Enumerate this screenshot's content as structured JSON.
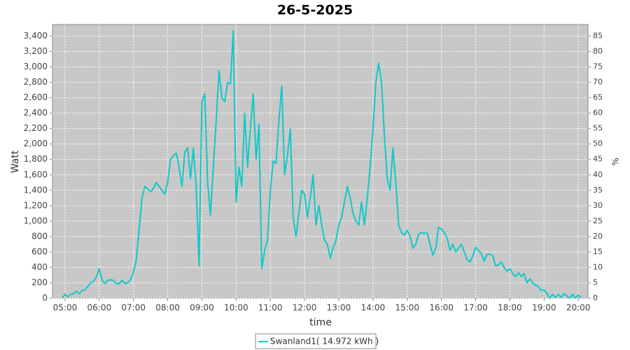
{
  "chart_data": {
    "type": "line",
    "title": "26-5-2025",
    "xlabel": "time",
    "ylabel": "Watt",
    "y2label": "%",
    "x": [
      "04:55",
      "05:00",
      "05:05",
      "05:10",
      "05:15",
      "05:20",
      "05:25",
      "05:30",
      "05:35",
      "05:40",
      "05:45",
      "05:50",
      "05:55",
      "06:00",
      "06:05",
      "06:10",
      "06:15",
      "06:20",
      "06:25",
      "06:30",
      "06:35",
      "06:40",
      "06:45",
      "06:50",
      "06:55",
      "07:00",
      "07:05",
      "07:10",
      "07:15",
      "07:20",
      "07:25",
      "07:30",
      "07:35",
      "07:40",
      "07:45",
      "07:50",
      "07:55",
      "08:00",
      "08:05",
      "08:10",
      "08:15",
      "08:20",
      "08:25",
      "08:30",
      "08:35",
      "08:40",
      "08:45",
      "08:50",
      "08:55",
      "09:00",
      "09:05",
      "09:10",
      "09:15",
      "09:20",
      "09:25",
      "09:30",
      "09:35",
      "09:40",
      "09:45",
      "09:50",
      "09:55",
      "10:00",
      "10:05",
      "10:10",
      "10:15",
      "10:20",
      "10:25",
      "10:30",
      "10:35",
      "10:40",
      "10:45",
      "10:50",
      "10:55",
      "11:00",
      "11:05",
      "11:10",
      "11:15",
      "11:20",
      "11:25",
      "11:30",
      "11:35",
      "11:40",
      "11:45",
      "11:50",
      "11:55",
      "12:00",
      "12:05",
      "12:10",
      "12:15",
      "12:20",
      "12:25",
      "12:30",
      "12:35",
      "12:40",
      "12:45",
      "12:50",
      "12:55",
      "13:00",
      "13:05",
      "13:10",
      "13:15",
      "13:20",
      "13:25",
      "13:30",
      "13:35",
      "13:40",
      "13:45",
      "13:50",
      "13:55",
      "14:00",
      "14:05",
      "14:10",
      "14:15",
      "14:20",
      "14:25",
      "14:30",
      "14:35",
      "14:40",
      "14:45",
      "14:50",
      "14:55",
      "15:00",
      "15:05",
      "15:10",
      "15:15",
      "15:20",
      "15:25",
      "15:30",
      "15:35",
      "15:40",
      "15:45",
      "15:50",
      "15:55",
      "16:00",
      "16:05",
      "16:10",
      "16:15",
      "16:20",
      "16:25",
      "16:30",
      "16:35",
      "16:40",
      "16:45",
      "16:50",
      "16:55",
      "17:00",
      "17:05",
      "17:10",
      "17:15",
      "17:20",
      "17:25",
      "17:30",
      "17:35",
      "17:40",
      "17:45",
      "17:50",
      "17:55",
      "18:00",
      "18:05",
      "18:10",
      "18:15",
      "18:20",
      "18:25",
      "18:30",
      "18:35",
      "18:40",
      "18:45",
      "18:50",
      "18:55",
      "19:00",
      "19:05",
      "19:10",
      "19:15",
      "19:20",
      "19:25",
      "19:30",
      "19:35",
      "19:40",
      "19:45",
      "19:50",
      "19:55",
      "20:00",
      "20:05"
    ],
    "series": [
      {
        "name": "Swanland1( 14.972 kWh )",
        "color": "#12c8c8",
        "values": [
          0,
          50,
          20,
          50,
          60,
          90,
          60,
          100,
          110,
          150,
          200,
          220,
          280,
          380,
          230,
          190,
          230,
          240,
          230,
          190,
          190,
          230,
          190,
          200,
          240,
          340,
          500,
          900,
          1300,
          1450,
          1420,
          1380,
          1420,
          1500,
          1450,
          1400,
          1350,
          1500,
          1800,
          1850,
          1880,
          1700,
          1450,
          1900,
          1950,
          1550,
          1950,
          1450,
          420,
          2550,
          2650,
          1500,
          1080,
          1700,
          2300,
          2950,
          2600,
          2550,
          2800,
          2780,
          3470,
          1250,
          1700,
          1450,
          2400,
          1700,
          2200,
          2650,
          1800,
          2250,
          380,
          620,
          750,
          1400,
          1780,
          1750,
          2300,
          2750,
          1600,
          1850,
          2200,
          1050,
          800,
          1100,
          1400,
          1350,
          1050,
          1300,
          1600,
          950,
          1200,
          950,
          750,
          700,
          520,
          650,
          750,
          950,
          1050,
          1250,
          1450,
          1300,
          1100,
          1000,
          950,
          1250,
          950,
          1300,
          1700,
          2200,
          2800,
          3050,
          2800,
          2100,
          1550,
          1400,
          1950,
          1500,
          950,
          850,
          820,
          880,
          800,
          650,
          700,
          830,
          850,
          840,
          850,
          700,
          560,
          650,
          920,
          900,
          850,
          780,
          620,
          700,
          600,
          650,
          700,
          600,
          500,
          470,
          550,
          660,
          620,
          580,
          480,
          570,
          570,
          550,
          420,
          430,
          470,
          400,
          350,
          380,
          320,
          280,
          330,
          280,
          320,
          200,
          250,
          200,
          170,
          150,
          100,
          110,
          60,
          0,
          50,
          10,
          50,
          10,
          60,
          30,
          0,
          50,
          0,
          40,
          0
        ]
      }
    ],
    "xlim": [
      "04:38",
      "20:17"
    ],
    "xticks": [
      "05:00",
      "06:00",
      "07:00",
      "08:00",
      "09:00",
      "10:00",
      "11:00",
      "12:00",
      "13:00",
      "14:00",
      "15:00",
      "16:00",
      "17:00",
      "18:00",
      "19:00",
      "20:00"
    ],
    "ylim": [
      0,
      3550
    ],
    "yticks": [
      0,
      200,
      400,
      600,
      800,
      {
        "value": 1000,
        "label": "1,000"
      },
      {
        "value": 1200,
        "label": "1,200"
      },
      {
        "value": 1400,
        "label": "1,400"
      },
      {
        "value": 1600,
        "label": "1,600"
      },
      {
        "value": 1800,
        "label": "1,800"
      },
      {
        "value": 2000,
        "label": "2,000"
      },
      {
        "value": 2200,
        "label": "2,200"
      },
      {
        "value": 2400,
        "label": "2,400"
      },
      {
        "value": 2600,
        "label": "2,600"
      },
      {
        "value": 2800,
        "label": "2,800"
      },
      {
        "value": 3000,
        "label": "3,000"
      },
      {
        "value": 3200,
        "label": "3,200"
      },
      {
        "value": 3400,
        "label": "3,400"
      }
    ],
    "y2lim": [
      0,
      88.75
    ],
    "y2ticks": [
      0,
      5,
      10,
      15,
      20,
      25,
      30,
      35,
      40,
      45,
      50,
      55,
      60,
      65,
      70,
      75,
      80,
      85
    ],
    "grid": true
  }
}
